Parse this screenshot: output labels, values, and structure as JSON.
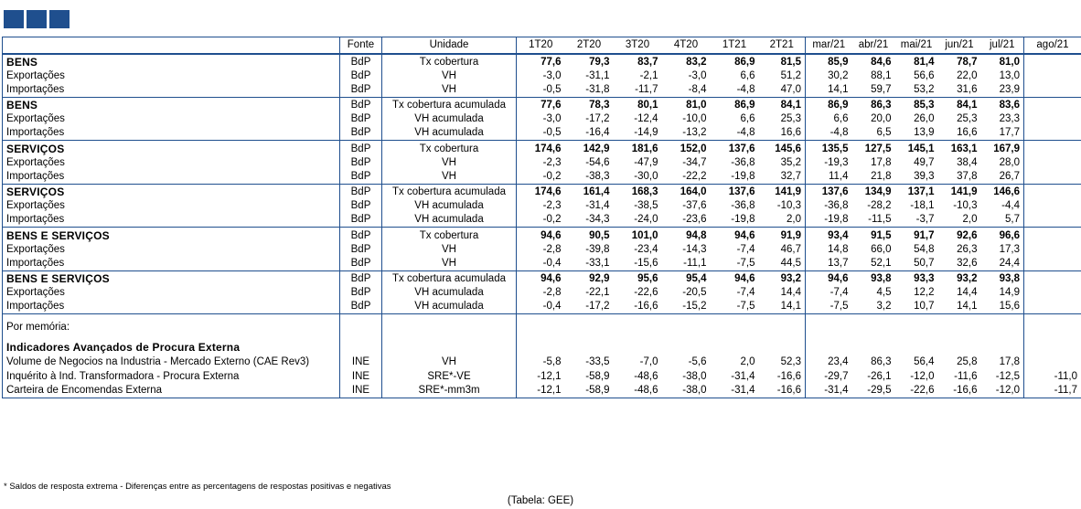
{
  "header": {
    "fonte": "Fonte",
    "unidade": "Unidade",
    "periods": [
      "1T20",
      "2T20",
      "3T20",
      "4T20",
      "1T21",
      "2T21",
      "mar/21",
      "abr/21",
      "mai/21",
      "jun/21",
      "jul/21",
      "ago/21"
    ]
  },
  "groups": [
    {
      "rows": [
        {
          "label": "BENS",
          "bold": true,
          "fonte": "BdP",
          "unidade": "Tx cobertura",
          "values": [
            "77,6",
            "79,3",
            "83,7",
            "83,2",
            "86,9",
            "81,5",
            "85,9",
            "84,6",
            "81,4",
            "78,7",
            "81,0",
            ""
          ]
        },
        {
          "label": "Exportações",
          "bold": false,
          "fonte": "BdP",
          "unidade": "VH",
          "values": [
            "-3,0",
            "-31,1",
            "-2,1",
            "-3,0",
            "6,6",
            "51,2",
            "30,2",
            "88,1",
            "56,6",
            "22,0",
            "13,0",
            ""
          ]
        },
        {
          "label": "Importações",
          "bold": false,
          "fonte": "BdP",
          "unidade": "VH",
          "values": [
            "-0,5",
            "-31,8",
            "-11,7",
            "-8,4",
            "-4,8",
            "47,0",
            "14,1",
            "59,7",
            "53,2",
            "31,6",
            "23,9",
            ""
          ]
        }
      ]
    },
    {
      "rows": [
        {
          "label": "BENS",
          "bold": true,
          "fonte": "BdP",
          "unidade": "Tx cobertura acumulada",
          "values": [
            "77,6",
            "78,3",
            "80,1",
            "81,0",
            "86,9",
            "84,1",
            "86,9",
            "86,3",
            "85,3",
            "84,1",
            "83,6",
            ""
          ]
        },
        {
          "label": "Exportações",
          "bold": false,
          "fonte": "BdP",
          "unidade": "VH acumulada",
          "values": [
            "-3,0",
            "-17,2",
            "-12,4",
            "-10,0",
            "6,6",
            "25,3",
            "6,6",
            "20,0",
            "26,0",
            "25,3",
            "23,3",
            ""
          ]
        },
        {
          "label": "Importações",
          "bold": false,
          "fonte": "BdP",
          "unidade": "VH acumulada",
          "values": [
            "-0,5",
            "-16,4",
            "-14,9",
            "-13,2",
            "-4,8",
            "16,6",
            "-4,8",
            "6,5",
            "13,9",
            "16,6",
            "17,7",
            ""
          ]
        }
      ]
    },
    {
      "rows": [
        {
          "label": "SERVIÇOS",
          "bold": true,
          "fonte": "BdP",
          "unidade": "Tx cobertura",
          "values": [
            "174,6",
            "142,9",
            "181,6",
            "152,0",
            "137,6",
            "145,6",
            "135,5",
            "127,5",
            "145,1",
            "163,1",
            "167,9",
            ""
          ]
        },
        {
          "label": "Exportações",
          "bold": false,
          "fonte": "BdP",
          "unidade": "VH",
          "values": [
            "-2,3",
            "-54,6",
            "-47,9",
            "-34,7",
            "-36,8",
            "35,2",
            "-19,3",
            "17,8",
            "49,7",
            "38,4",
            "28,0",
            ""
          ]
        },
        {
          "label": "Importações",
          "bold": false,
          "fonte": "BdP",
          "unidade": "VH",
          "values": [
            "-0,2",
            "-38,3",
            "-30,0",
            "-22,2",
            "-19,8",
            "32,7",
            "11,4",
            "21,8",
            "39,3",
            "37,8",
            "26,7",
            ""
          ]
        }
      ]
    },
    {
      "rows": [
        {
          "label": "SERVIÇOS",
          "bold": true,
          "fonte": "BdP",
          "unidade": "Tx cobertura acumulada",
          "values": [
            "174,6",
            "161,4",
            "168,3",
            "164,0",
            "137,6",
            "141,9",
            "137,6",
            "134,9",
            "137,1",
            "141,9",
            "146,6",
            ""
          ]
        },
        {
          "label": "Exportações",
          "bold": false,
          "fonte": "BdP",
          "unidade": "VH acumulada",
          "values": [
            "-2,3",
            "-31,4",
            "-38,5",
            "-37,6",
            "-36,8",
            "-10,3",
            "-36,8",
            "-28,2",
            "-18,1",
            "-10,3",
            "-4,4",
            ""
          ]
        },
        {
          "label": "Importações",
          "bold": false,
          "fonte": "BdP",
          "unidade": "VH acumulada",
          "values": [
            "-0,2",
            "-34,3",
            "-24,0",
            "-23,6",
            "-19,8",
            "2,0",
            "-19,8",
            "-11,5",
            "-3,7",
            "2,0",
            "5,7",
            ""
          ]
        }
      ]
    },
    {
      "rows": [
        {
          "label": "BENS E SERVIÇOS",
          "bold": true,
          "fonte": "BdP",
          "unidade": "Tx cobertura",
          "values": [
            "94,6",
            "90,5",
            "101,0",
            "94,8",
            "94,6",
            "91,9",
            "93,4",
            "91,5",
            "91,7",
            "92,6",
            "96,6",
            ""
          ]
        },
        {
          "label": "Exportações",
          "bold": false,
          "fonte": "BdP",
          "unidade": "VH",
          "values": [
            "-2,8",
            "-39,8",
            "-23,4",
            "-14,3",
            "-7,4",
            "46,7",
            "14,8",
            "66,0",
            "54,8",
            "26,3",
            "17,3",
            ""
          ]
        },
        {
          "label": "Importações",
          "bold": false,
          "fonte": "BdP",
          "unidade": "VH",
          "values": [
            "-0,4",
            "-33,1",
            "-15,6",
            "-11,1",
            "-7,5",
            "44,5",
            "13,7",
            "52,1",
            "50,7",
            "32,6",
            "24,4",
            ""
          ]
        }
      ]
    },
    {
      "rows": [
        {
          "label": "BENS E SERVIÇOS",
          "bold": true,
          "fonte": "BdP",
          "unidade": "Tx cobertura acumulada",
          "values": [
            "94,6",
            "92,9",
            "95,6",
            "95,4",
            "94,6",
            "93,2",
            "94,6",
            "93,8",
            "93,3",
            "93,2",
            "93,8",
            ""
          ]
        },
        {
          "label": "Exportações",
          "bold": false,
          "fonte": "BdP",
          "unidade": "VH acumulada",
          "values": [
            "-2,8",
            "-22,1",
            "-22,6",
            "-20,5",
            "-7,4",
            "14,4",
            "-7,4",
            "4,5",
            "12,2",
            "14,4",
            "14,9",
            ""
          ]
        },
        {
          "label": "Importações",
          "bold": false,
          "fonte": "BdP",
          "unidade": "VH acumulada",
          "values": [
            "-0,4",
            "-17,2",
            "-16,6",
            "-15,2",
            "-7,5",
            "14,1",
            "-7,5",
            "3,2",
            "10,7",
            "14,1",
            "15,6",
            ""
          ]
        }
      ]
    }
  ],
  "memo": {
    "title": "Por memória:",
    "subtitle": "Indicadores Avançados de Procura Externa",
    "rows": [
      {
        "label": "Volume de Negocios na Industria - Mercado Externo (CAE Rev3)",
        "fonte": "INE",
        "unidade": "VH",
        "values": [
          "-5,8",
          "-33,5",
          "-7,0",
          "-5,6",
          "2,0",
          "52,3",
          "23,4",
          "86,3",
          "56,4",
          "25,8",
          "17,8",
          ""
        ]
      },
      {
        "label": "Inquérito à Ind. Transformadora - Procura Externa",
        "fonte": "INE",
        "unidade": "SRE*-VE",
        "values": [
          "-12,1",
          "-58,9",
          "-48,6",
          "-38,0",
          "-31,4",
          "-16,6",
          "-29,7",
          "-26,1",
          "-12,0",
          "-11,6",
          "-12,5",
          "-11,0"
        ]
      },
      {
        "label": "Carteira de Encomendas Externa",
        "fonte": "INE",
        "unidade": "SRE*-mm3m",
        "values": [
          "-12,1",
          "-58,9",
          "-48,6",
          "-38,0",
          "-31,4",
          "-16,6",
          "-31,4",
          "-29,5",
          "-22,6",
          "-16,6",
          "-12,0",
          "-11,7"
        ]
      }
    ]
  },
  "footnote": "* Saldos de resposta extrema - Diferenças entre as percentagens de respostas positivas e negativas",
  "source": "(Tabela: GEE)",
  "colors": {
    "accent": "#1f4f8e"
  }
}
